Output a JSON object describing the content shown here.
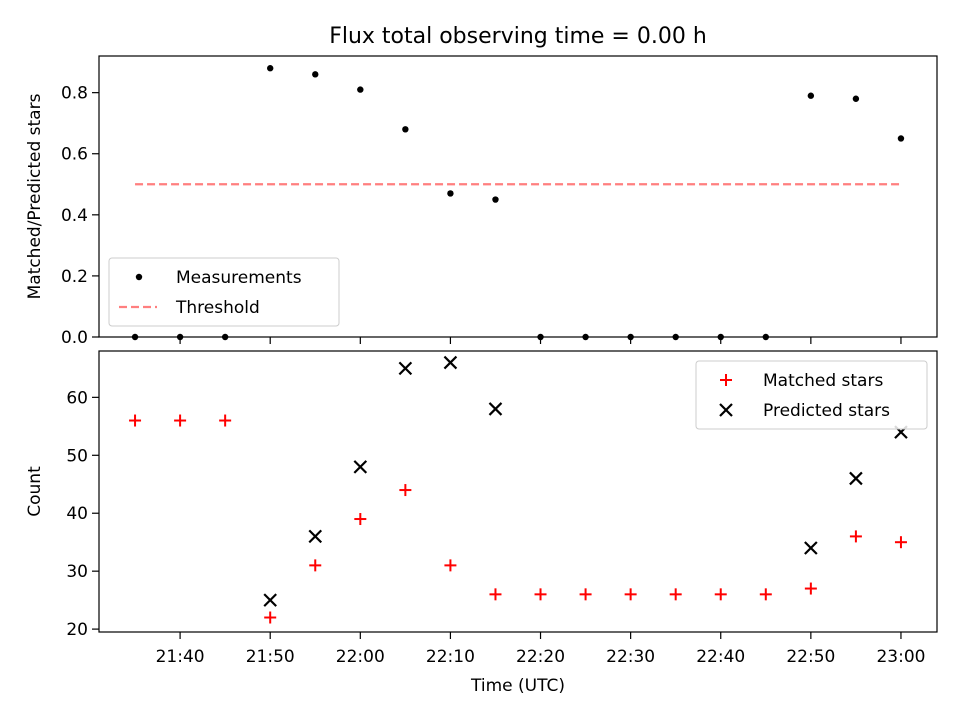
{
  "title": "Flux total observing time = 0.00 h",
  "chart_data": [
    {
      "type": "scatter",
      "ylabel": "Matched/Predicted stars",
      "ylim": [
        0,
        0.92
      ],
      "yticks": [
        "0.0",
        "0.2",
        "0.4",
        "0.6",
        "0.8"
      ],
      "grid": false,
      "legend": {
        "placement": "lower-left",
        "entries": [
          "Measurements",
          "Threshold"
        ]
      },
      "series": [
        {
          "name": "Measurements",
          "marker": "dot",
          "color": "#000000",
          "points": [
            [
              "21:35",
              0.0
            ],
            [
              "21:40",
              0.0
            ],
            [
              "21:45",
              0.0
            ],
            [
              "21:50",
              0.88
            ],
            [
              "21:55",
              0.86
            ],
            [
              "22:00",
              0.81
            ],
            [
              "22:05",
              0.68
            ],
            [
              "22:10",
              0.47
            ],
            [
              "22:15",
              0.45
            ],
            [
              "22:20",
              0.0
            ],
            [
              "22:25",
              0.0
            ],
            [
              "22:30",
              0.0
            ],
            [
              "22:35",
              0.0
            ],
            [
              "22:40",
              0.0
            ],
            [
              "22:45",
              0.0
            ],
            [
              "22:50",
              0.79
            ],
            [
              "22:55",
              0.78
            ],
            [
              "23:00",
              0.65
            ]
          ]
        },
        {
          "name": "Threshold",
          "type": "line",
          "style": "dashed",
          "color": "#ff7f7f",
          "points": [
            [
              "21:35",
              0.5
            ],
            [
              "23:00",
              0.5
            ]
          ]
        }
      ]
    },
    {
      "type": "scatter",
      "xlabel": "Time (UTC)",
      "ylabel": "Count",
      "ylim": [
        19.5,
        68
      ],
      "yticks": [
        "20",
        "30",
        "40",
        "50",
        "60"
      ],
      "xticks": [
        "21:40",
        "21:50",
        "22:00",
        "22:10",
        "22:20",
        "22:30",
        "22:40",
        "22:50",
        "23:00"
      ],
      "xlim": [
        "21:31",
        "23:04"
      ],
      "grid": false,
      "legend": {
        "placement": "top-right",
        "entries": [
          "Matched stars",
          "Predicted stars"
        ]
      },
      "series": [
        {
          "name": "Matched stars",
          "marker": "plus",
          "color": "#ff0000",
          "points": [
            [
              "21:35",
              56
            ],
            [
              "21:40",
              56
            ],
            [
              "21:45",
              56
            ],
            [
              "21:50",
              22
            ],
            [
              "21:55",
              31
            ],
            [
              "22:00",
              39
            ],
            [
              "22:05",
              44
            ],
            [
              "22:10",
              31
            ],
            [
              "22:15",
              26
            ],
            [
              "22:20",
              26
            ],
            [
              "22:25",
              26
            ],
            [
              "22:30",
              26
            ],
            [
              "22:35",
              26
            ],
            [
              "22:40",
              26
            ],
            [
              "22:45",
              26
            ],
            [
              "22:50",
              27
            ],
            [
              "22:55",
              36
            ],
            [
              "23:00",
              35
            ]
          ]
        },
        {
          "name": "Predicted stars",
          "marker": "x",
          "color": "#000000",
          "points": [
            [
              "21:50",
              25
            ],
            [
              "21:55",
              36
            ],
            [
              "22:00",
              48
            ],
            [
              "22:05",
              65
            ],
            [
              "22:10",
              66
            ],
            [
              "22:15",
              58
            ],
            [
              "22:50",
              34
            ],
            [
              "22:55",
              46
            ],
            [
              "23:00",
              54
            ]
          ]
        }
      ]
    }
  ]
}
